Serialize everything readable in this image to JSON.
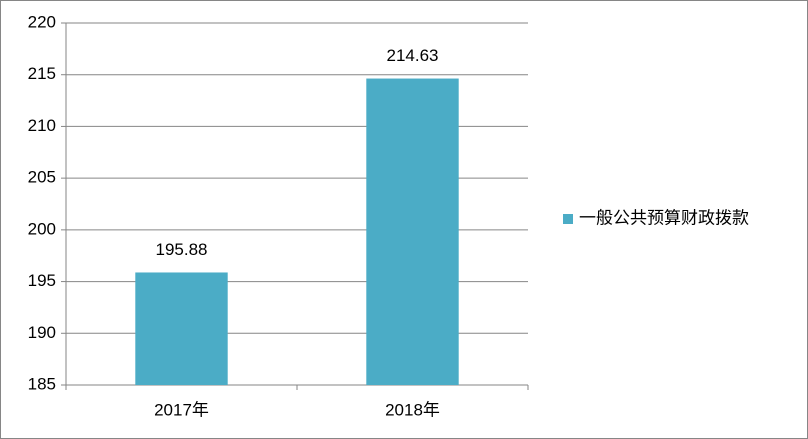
{
  "chart_data": {
    "type": "bar",
    "categories": [
      "2017年",
      "2018年"
    ],
    "series": [
      {
        "name": "一般公共预算财政拨款",
        "color": "#4bacc6",
        "values": [
          195.88,
          214.63
        ]
      }
    ],
    "ylim": [
      185,
      220
    ],
    "yticks": [
      185,
      190,
      195,
      200,
      205,
      210,
      215,
      220
    ],
    "grid": true,
    "legend": "right"
  }
}
